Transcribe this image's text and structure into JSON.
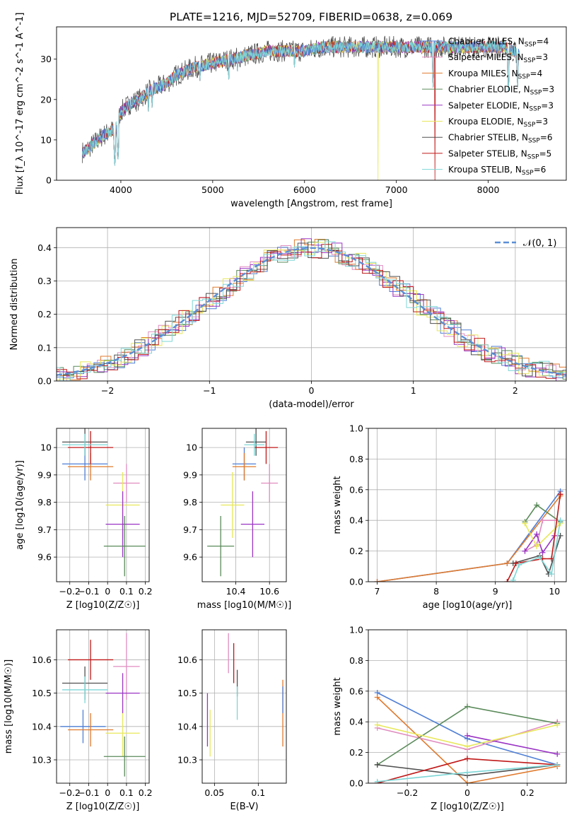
{
  "figure_title": "PLATE=1216, MJD=52709, FIBERID=0638, z=0.069",
  "colors": {
    "Chabrier MILES": "#4f7fd6",
    "Salpeter MILES": "#e08cc0",
    "Kroupa MILES": "#e07a2e",
    "Chabrier ELODIE": "#5a8a5a",
    "Salpeter ELODIE": "#9a34c4",
    "Kroupa ELODIE": "#e8e85a",
    "Chabrier STELIB": "#505050",
    "Salpeter STELIB": "#c01818",
    "Kroupa STELIB": "#7dd6d6",
    "gaussian": "#5b8fd6"
  },
  "legend1": [
    {
      "name": "Chabrier MILES",
      "n": "4"
    },
    {
      "name": "Salpeter MILES",
      "n": "3"
    },
    {
      "name": "Kroupa MILES",
      "n": "4"
    },
    {
      "name": "Chabrier ELODIE",
      "n": "3"
    },
    {
      "name": "Salpeter ELODIE",
      "n": "3"
    },
    {
      "name": "Kroupa ELODIE",
      "n": "3"
    },
    {
      "name": "Chabrier STELIB",
      "n": "6"
    },
    {
      "name": "Salpeter STELIB",
      "n": "5"
    },
    {
      "name": "Kroupa STELIB",
      "n": "6"
    }
  ],
  "legend2": {
    "label": "𝒩(0, 1)"
  },
  "chart_data": [
    {
      "id": "spectrum",
      "type": "line",
      "xlabel": "wavelength [Angstrom, rest frame]",
      "ylabel": "Flux [f_λ 10^-17 erg cm^-2 s^-1 A^-1]",
      "xlim": [
        3300,
        8850
      ],
      "ylim": [
        0,
        38
      ],
      "xticks": [
        4000,
        5000,
        6000,
        7000,
        8000
      ],
      "yticks": [
        0,
        10,
        20,
        30
      ],
      "grid": false,
      "legend": "right",
      "continuum": [
        [
          3600,
          7
        ],
        [
          3700,
          9
        ],
        [
          3800,
          11
        ],
        [
          3880,
          12
        ],
        [
          3950,
          13
        ],
        [
          4000,
          17
        ],
        [
          4100,
          19
        ],
        [
          4200,
          20
        ],
        [
          4300,
          22
        ],
        [
          4400,
          23
        ],
        [
          4500,
          24
        ],
        [
          4600,
          26
        ],
        [
          4800,
          28
        ],
        [
          5000,
          29
        ],
        [
          5200,
          30
        ],
        [
          5400,
          31
        ],
        [
          5600,
          32
        ],
        [
          5800,
          32
        ],
        [
          6000,
          32
        ],
        [
          6200,
          33
        ],
        [
          6500,
          33
        ],
        [
          6800,
          33
        ],
        [
          7000,
          33
        ],
        [
          7200,
          33
        ],
        [
          7400,
          33
        ],
        [
          7600,
          33
        ],
        [
          7800,
          33
        ],
        [
          8000,
          33
        ],
        [
          8200,
          33
        ],
        [
          8340,
          31
        ]
      ],
      "dips": [
        [
          3934,
          3
        ],
        [
          3968,
          4
        ],
        [
          4102,
          16
        ],
        [
          4300,
          17
        ],
        [
          4340,
          18
        ],
        [
          4861,
          24
        ],
        [
          5175,
          25
        ],
        [
          5270,
          27
        ],
        [
          5890,
          28
        ],
        [
          6563,
          31
        ],
        [
          7400,
          23
        ],
        [
          8220,
          22
        ],
        [
          8320,
          23
        ]
      ],
      "cutoff": [
        {
          "x": 6800,
          "series": "Kroupa ELODIE",
          "to": 0
        },
        {
          "x": 7420,
          "series": "Salpeter STELIB",
          "to": 0
        }
      ]
    },
    {
      "id": "residual_hist",
      "type": "area",
      "xlabel": "(data-model)/error",
      "ylabel": "Normed distribution",
      "xlim": [
        -2.5,
        2.5
      ],
      "ylim": [
        0,
        0.46
      ],
      "xticks": [
        -2,
        -1,
        0,
        1,
        2
      ],
      "yticks": [
        0.0,
        0.1,
        0.2,
        0.3,
        0.4
      ],
      "grid": true,
      "legend": "top-right",
      "gaussian": {
        "mu": 0,
        "sigma": 1
      }
    },
    {
      "id": "Z_age",
      "type": "scatter",
      "xlabel": "Z [log10(Z/Z☉)]",
      "ylabel": "age [log10(age/yr)]",
      "xlim": [
        -0.27,
        0.22
      ],
      "ylim": [
        9.51,
        10.07
      ],
      "xticks": [
        -0.2,
        -0.1,
        0.0,
        0.1,
        0.2
      ],
      "yticks": [
        9.6,
        9.7,
        9.8,
        9.9,
        10.0
      ],
      "grid": true,
      "points": [
        {
          "s": "Chabrier MILES",
          "x": -0.12,
          "xe": 0.12,
          "y": 9.94,
          "ye": 0.06
        },
        {
          "s": "Kroupa MILES",
          "x": -0.09,
          "xe": 0.12,
          "y": 9.93,
          "ye": 0.05
        },
        {
          "s": "Chabrier STELIB",
          "x": -0.12,
          "xe": 0.12,
          "y": 10.02,
          "ye": 0.05
        },
        {
          "s": "Salpeter STELIB",
          "x": -0.09,
          "xe": 0.12,
          "y": 10.0,
          "ye": 0.06
        },
        {
          "s": "Kroupa STELIB",
          "x": -0.12,
          "xe": 0.12,
          "y": 10.01,
          "ye": 0.04
        },
        {
          "s": "Salpeter MILES",
          "x": 0.1,
          "xe": 0.07,
          "y": 9.87,
          "ye": 0.07
        },
        {
          "s": "Kroupa ELODIE",
          "x": 0.08,
          "xe": 0.09,
          "y": 9.79,
          "ye": 0.12
        },
        {
          "s": "Salpeter ELODIE",
          "x": 0.08,
          "xe": 0.09,
          "y": 9.72,
          "ye": 0.12
        },
        {
          "s": "Chabrier ELODIE",
          "x": 0.09,
          "xe": 0.11,
          "y": 9.64,
          "ye": 0.11
        }
      ]
    },
    {
      "id": "mass_age",
      "type": "scatter",
      "xlabel": "mass [log10(M/M☉)]",
      "ylabel": "",
      "xlim": [
        10.2,
        10.7
      ],
      "ylim": [
        9.51,
        10.07
      ],
      "xticks": [
        10.4,
        10.6
      ],
      "yticks": [
        9.6,
        9.7,
        9.8,
        9.9,
        10.0
      ],
      "grid": true,
      "points": [
        {
          "s": "Chabrier MILES",
          "x": 10.45,
          "xe": 0.07,
          "y": 9.94,
          "ye": 0.06
        },
        {
          "s": "Kroupa MILES",
          "x": 10.45,
          "xe": 0.07,
          "y": 9.93,
          "ye": 0.05
        },
        {
          "s": "Chabrier STELIB",
          "x": 10.52,
          "xe": 0.06,
          "y": 10.02,
          "ye": 0.05
        },
        {
          "s": "Salpeter STELIB",
          "x": 10.58,
          "xe": 0.07,
          "y": 10.0,
          "ye": 0.06
        },
        {
          "s": "Kroupa STELIB",
          "x": 10.51,
          "xe": 0.06,
          "y": 10.01,
          "ye": 0.04
        },
        {
          "s": "Salpeter MILES",
          "x": 10.6,
          "xe": 0.05,
          "y": 9.87,
          "ye": 0.07
        },
        {
          "s": "Kroupa ELODIE",
          "x": 10.38,
          "xe": 0.07,
          "y": 9.79,
          "ye": 0.12
        },
        {
          "s": "Salpeter ELODIE",
          "x": 10.5,
          "xe": 0.07,
          "y": 9.72,
          "ye": 0.12
        },
        {
          "s": "Chabrier ELODIE",
          "x": 10.31,
          "xe": 0.08,
          "y": 9.64,
          "ye": 0.11
        }
      ]
    },
    {
      "id": "age_weight",
      "type": "line",
      "xlabel": "age [log10(age/yr)]",
      "ylabel": "mass weight",
      "xlim": [
        6.85,
        10.2
      ],
      "ylim": [
        0,
        1
      ],
      "xticks": [
        7,
        8,
        9,
        10
      ],
      "yticks": [
        0.0,
        0.2,
        0.4,
        0.6,
        0.8,
        1.0
      ],
      "grid": true,
      "series": [
        {
          "s": "Chabrier MILES",
          "pts": [
            [
              10.1,
              0.59
            ],
            [
              9.2,
              0.12
            ],
            [
              7.0,
              0.0
            ]
          ]
        },
        {
          "s": "Kroupa MILES",
          "pts": [
            [
              10.1,
              0.56
            ],
            [
              9.2,
              0.12
            ],
            [
              7.0,
              0.0
            ]
          ]
        },
        {
          "s": "Salpeter MILES",
          "pts": [
            [
              9.5,
              0.2
            ],
            [
              9.7,
              0.24
            ],
            [
              9.8,
              0.4
            ],
            [
              10.1,
              0.4
            ]
          ]
        },
        {
          "s": "Chabrier ELODIE",
          "pts": [
            [
              9.5,
              0.39
            ],
            [
              9.7,
              0.5
            ],
            [
              10.1,
              0.39
            ]
          ]
        },
        {
          "s": "Salpeter ELODIE",
          "pts": [
            [
              9.5,
              0.2
            ],
            [
              9.7,
              0.31
            ],
            [
              9.8,
              0.19
            ],
            [
              10.0,
              0.3
            ]
          ]
        },
        {
          "s": "Kroupa ELODIE",
          "pts": [
            [
              9.5,
              0.38
            ],
            [
              9.7,
              0.23
            ],
            [
              10.1,
              0.38
            ]
          ]
        },
        {
          "s": "Chabrier STELIB",
          "pts": [
            [
              9.3,
              0.12
            ],
            [
              9.75,
              0.17
            ],
            [
              9.9,
              0.05
            ],
            [
              10.1,
              0.3
            ]
          ]
        },
        {
          "s": "Salpeter STELIB",
          "pts": [
            [
              9.2,
              0.0
            ],
            [
              9.35,
              0.12
            ],
            [
              9.8,
              0.15
            ],
            [
              9.95,
              0.15
            ],
            [
              10.1,
              0.57
            ]
          ]
        },
        {
          "s": "Kroupa STELIB",
          "pts": [
            [
              9.3,
              0.01
            ],
            [
              9.4,
              0.11
            ],
            [
              9.75,
              0.16
            ],
            [
              9.95,
              0.05
            ],
            [
              10.1,
              0.4
            ]
          ]
        }
      ]
    },
    {
      "id": "Z_mass",
      "type": "scatter",
      "xlabel": "Z [log10(Z/Z☉)]",
      "ylabel": "mass [log10(M/M☉)]",
      "xlim": [
        -0.27,
        0.22
      ],
      "ylim": [
        10.23,
        10.69
      ],
      "xticks": [
        -0.2,
        -0.1,
        0.0,
        0.1,
        0.2
      ],
      "yticks": [
        10.3,
        10.4,
        10.5,
        10.6
      ],
      "grid": true,
      "points": [
        {
          "s": "Chabrier MILES",
          "x": -0.13,
          "xe": 0.12,
          "y": 10.4,
          "ye": 0.05
        },
        {
          "s": "Kroupa MILES",
          "x": -0.09,
          "xe": 0.12,
          "y": 10.39,
          "ye": 0.05
        },
        {
          "s": "Chabrier STELIB",
          "x": -0.12,
          "xe": 0.12,
          "y": 10.53,
          "ye": 0.05
        },
        {
          "s": "Salpeter STELIB",
          "x": -0.09,
          "xe": 0.12,
          "y": 10.6,
          "ye": 0.06
        },
        {
          "s": "Kroupa STELIB",
          "x": -0.12,
          "xe": 0.12,
          "y": 10.51,
          "ye": 0.04
        },
        {
          "s": "Salpeter MILES",
          "x": 0.1,
          "xe": 0.07,
          "y": 10.58,
          "ye": 0.1
        },
        {
          "s": "Kroupa ELODIE",
          "x": 0.08,
          "xe": 0.09,
          "y": 10.38,
          "ye": 0.07
        },
        {
          "s": "Salpeter ELODIE",
          "x": 0.08,
          "xe": 0.09,
          "y": 10.5,
          "ye": 0.06
        },
        {
          "s": "Chabrier ELODIE",
          "x": 0.09,
          "xe": 0.11,
          "y": 10.31,
          "ye": 0.06
        }
      ]
    },
    {
      "id": "ebv_mass",
      "type": "scatter",
      "xlabel": "E(B-V)",
      "ylabel": "",
      "xlim": [
        0.036,
        0.132
      ],
      "ylim": [
        10.23,
        10.69
      ],
      "xticks": [
        0.05,
        0.1
      ],
      "yticks": [
        10.3,
        10.4,
        10.5,
        10.6
      ],
      "grid": true,
      "points": [
        {
          "s": "Salpeter ELODIE",
          "x": 0.042,
          "ye": 0.08,
          "y": 10.42
        },
        {
          "s": "Kroupa ELODIE",
          "x": 0.045,
          "ye": 0.07,
          "y": 10.38
        },
        {
          "s": "Salpeter MILES",
          "x": 0.066,
          "ye": 0.06,
          "y": 10.62
        },
        {
          "s": "Salpeter STELIB",
          "x": 0.072,
          "ye": 0.06,
          "y": 10.59
        },
        {
          "s": "Chabrier STELIB",
          "x": 0.076,
          "ye": 0.04,
          "y": 10.53
        },
        {
          "s": "Kroupa STELIB",
          "x": 0.076,
          "ye": 0.05,
          "y": 10.47
        },
        {
          "s": "Kroupa MILES",
          "x": 0.128,
          "ye": 0.1,
          "y": 10.44
        },
        {
          "s": "Chabrier MILES",
          "x": 0.128,
          "ye": 0.04,
          "y": 10.48
        }
      ]
    },
    {
      "id": "Z_weight",
      "type": "line",
      "xlabel": "Z [log10(Z/Z☉)]",
      "ylabel": "mass weight",
      "xlim": [
        -0.33,
        0.33
      ],
      "ylim": [
        0,
        1
      ],
      "xticks": [
        -0.2,
        0.0,
        0.2
      ],
      "yticks": [
        0.0,
        0.2,
        0.4,
        0.6,
        0.8,
        1.0
      ],
      "grid": true,
      "series": [
        {
          "s": "Chabrier MILES",
          "pts": [
            [
              -0.3,
              0.59
            ],
            [
              0.0,
              0.29
            ],
            [
              0.3,
              0.12
            ]
          ]
        },
        {
          "s": "Kroupa MILES",
          "pts": [
            [
              -0.3,
              0.56
            ],
            [
              0.0,
              0.0
            ],
            [
              0.3,
              0.11
            ]
          ]
        },
        {
          "s": "Salpeter MILES",
          "pts": [
            [
              -0.3,
              0.36
            ],
            [
              0.0,
              0.22
            ],
            [
              0.3,
              0.4
            ]
          ]
        },
        {
          "s": "Chabrier ELODIE",
          "pts": [
            [
              -0.3,
              0.12
            ],
            [
              0.0,
              0.5
            ],
            [
              0.3,
              0.39
            ]
          ]
        },
        {
          "s": "Salpeter ELODIE",
          "pts": [
            [
              0.0,
              0.31
            ],
            [
              0.3,
              0.19
            ]
          ]
        },
        {
          "s": "Kroupa ELODIE",
          "pts": [
            [
              -0.3,
              0.38
            ],
            [
              0.0,
              0.24
            ],
            [
              0.3,
              0.38
            ]
          ]
        },
        {
          "s": "Chabrier STELIB",
          "pts": [
            [
              -0.3,
              0.12
            ],
            [
              0.0,
              0.05
            ],
            [
              0.3,
              0.12
            ]
          ]
        },
        {
          "s": "Salpeter STELIB",
          "pts": [
            [
              -0.3,
              0.0
            ],
            [
              0.0,
              0.16
            ],
            [
              0.3,
              0.12
            ]
          ]
        },
        {
          "s": "Kroupa STELIB",
          "pts": [
            [
              -0.3,
              0.01
            ],
            [
              0.0,
              0.07
            ],
            [
              0.3,
              0.12
            ]
          ]
        }
      ]
    }
  ]
}
